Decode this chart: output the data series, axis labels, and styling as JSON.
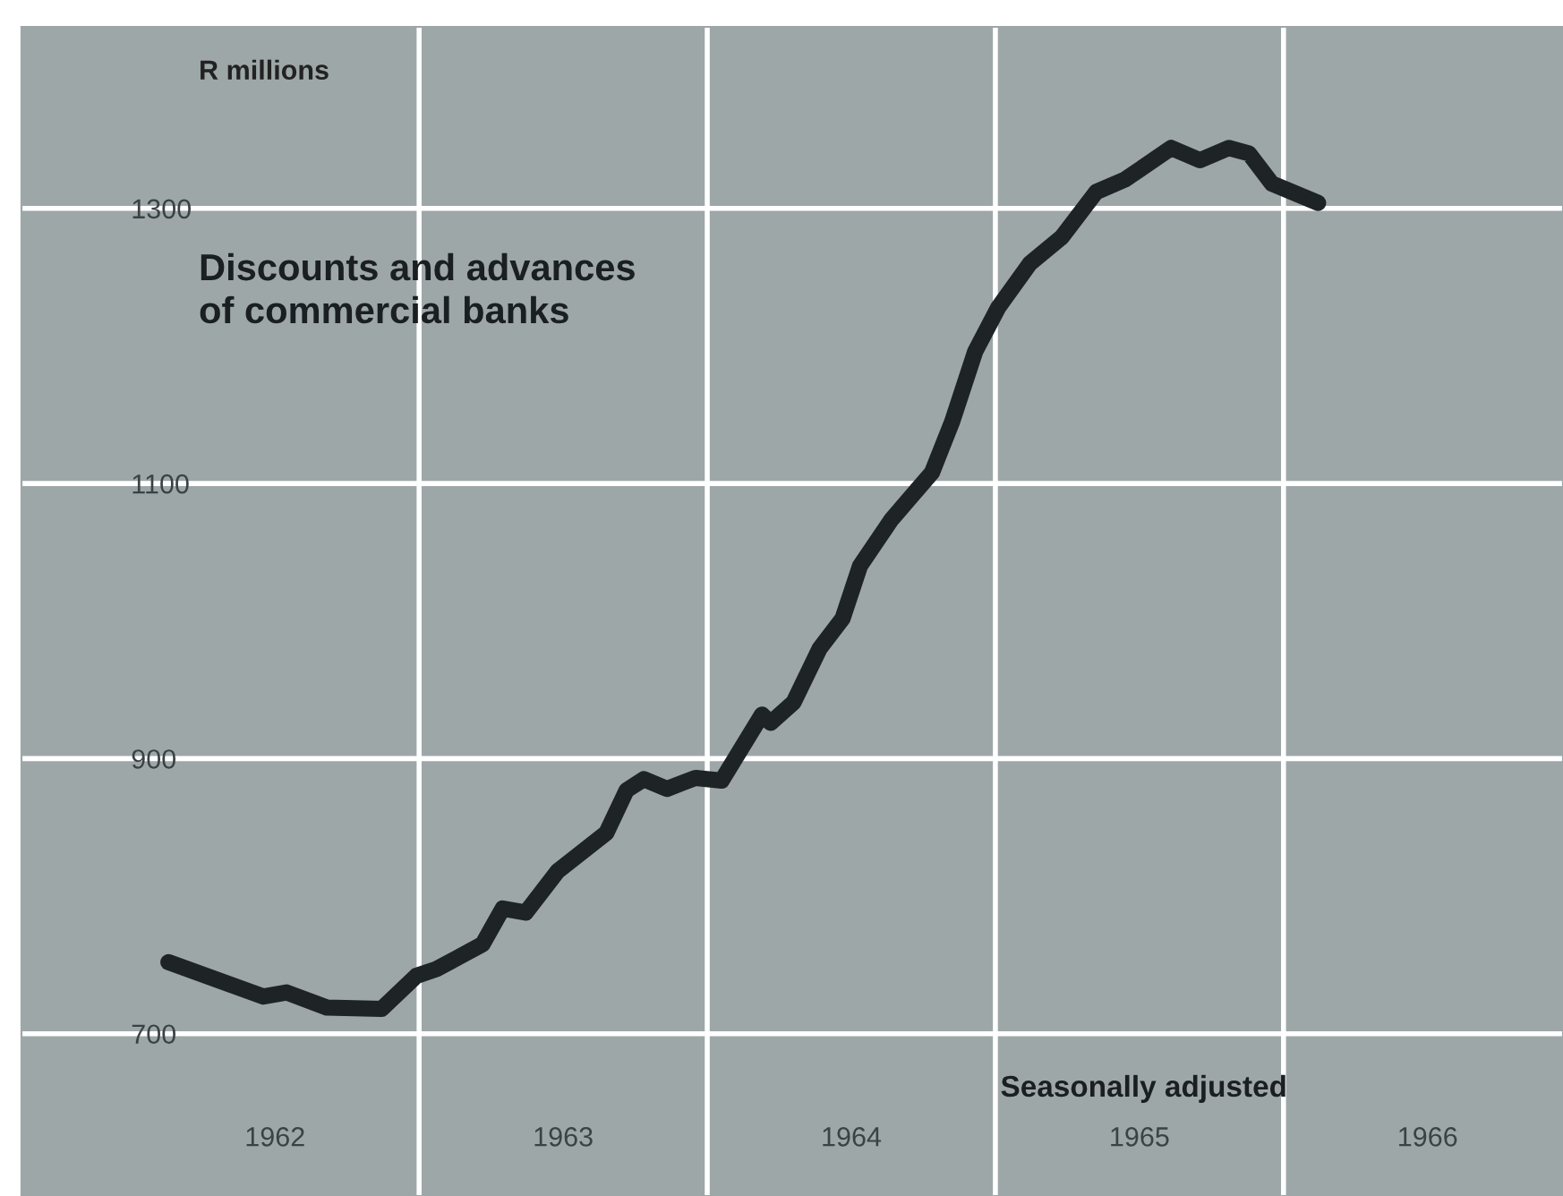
{
  "chart_data": {
    "type": "line",
    "title": "Discounts and advances\nof commercial banks",
    "ylabel": "R millions",
    "annotations": [
      "Seasonally adjusted"
    ],
    "x": [
      1962.13,
      1962.46,
      1962.54,
      1962.68,
      1962.87,
      1962.99,
      1963.06,
      1963.22,
      1963.29,
      1963.37,
      1963.48,
      1963.65,
      1963.72,
      1963.78,
      1963.86,
      1963.96,
      1964.05,
      1964.19,
      1964.22,
      1964.3,
      1964.39,
      1964.47,
      1964.53,
      1964.64,
      1964.78,
      1964.85,
      1964.93,
      1965.01,
      1965.12,
      1965.23,
      1965.35,
      1965.45,
      1965.61,
      1965.71,
      1965.81,
      1965.88,
      1965.96,
      1966.12
    ],
    "series": [
      {
        "color": "#1e2326",
        "values": [
          752,
          727,
          730,
          719,
          718,
          742,
          747,
          765,
          791,
          788,
          818,
          846,
          877,
          885,
          878,
          886,
          884,
          932,
          926,
          941,
          980,
          1002,
          1040,
          1074,
          1108,
          1145,
          1196,
          1228,
          1260,
          1279,
          1312,
          1321,
          1344,
          1335,
          1344,
          1340,
          1318,
          1304
        ]
      }
    ],
    "xlim": [
      1961.62,
      1966.97
    ],
    "ylim": [
      582,
      1432
    ],
    "xticks": [
      {
        "value": 1962.5,
        "label": "1962"
      },
      {
        "value": 1963.5,
        "label": "1963"
      },
      {
        "value": 1964.5,
        "label": "1964"
      },
      {
        "value": 1965.5,
        "label": "1965"
      },
      {
        "value": 1966.5,
        "label": "1966"
      }
    ],
    "yticks": [
      700,
      900,
      1100,
      1300
    ],
    "ref_lines": [
      {
        "axis": "x",
        "value": 1963,
        "color": "#ffffff"
      },
      {
        "axis": "x",
        "value": 1964,
        "color": "#ffffff"
      },
      {
        "axis": "x",
        "value": 1965,
        "color": "#ffffff"
      },
      {
        "axis": "x",
        "value": 1966,
        "color": "#ffffff"
      }
    ],
    "grid": "y",
    "line_style": "solid",
    "marker": "none"
  }
}
